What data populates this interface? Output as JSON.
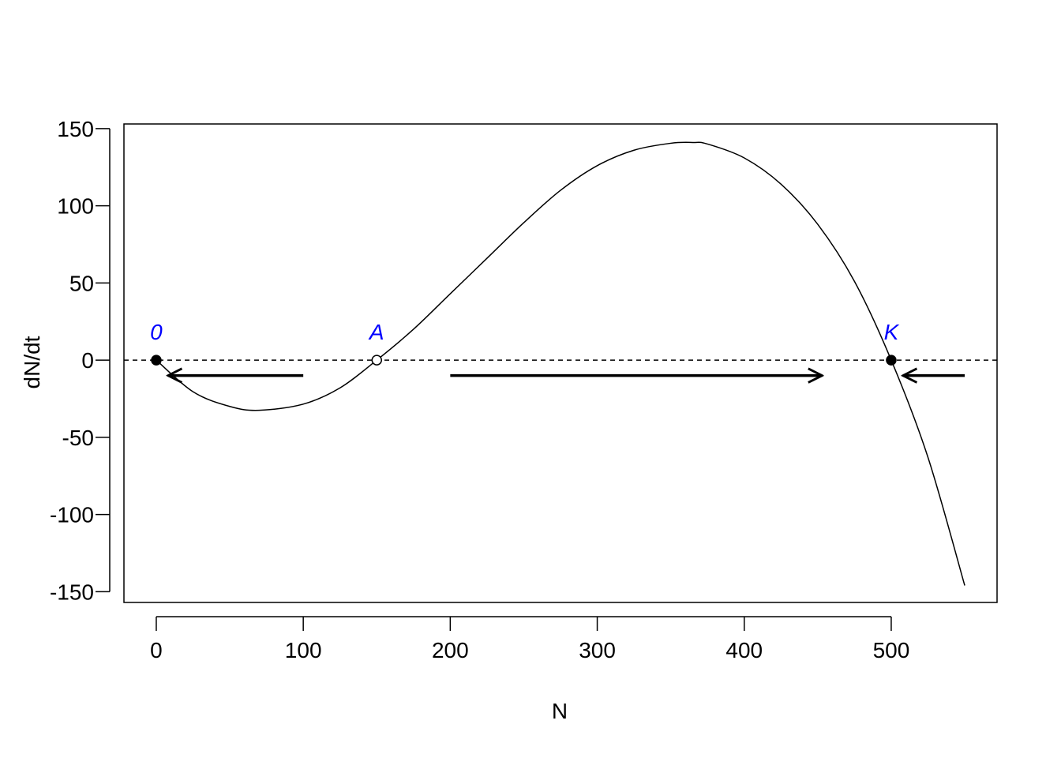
{
  "chart_data": {
    "type": "line",
    "title": "",
    "xlabel": "N",
    "ylabel": "dN/dt",
    "xlim": [
      -22,
      572
    ],
    "ylim": [
      -157,
      153
    ],
    "x_ticks": [
      0,
      100,
      200,
      300,
      400,
      500
    ],
    "y_ticks": [
      -150,
      -100,
      -50,
      0,
      50,
      100,
      150
    ],
    "x_tick_labels": [
      "0",
      "100",
      "200",
      "300",
      "400",
      "500"
    ],
    "y_tick_labels": [
      "-150",
      "-100",
      "-50",
      "0",
      "50",
      "100",
      "150"
    ],
    "grid": false,
    "series": [
      {
        "style": "solid",
        "color": "#000000",
        "x": [
          0,
          25,
          50,
          70,
          100,
          125,
          150,
          175,
          200,
          225,
          250,
          275,
          300,
          325,
          350,
          365,
          375,
          400,
          425,
          450,
          475,
          500,
          525,
          550
        ],
        "y": [
          0,
          -20.5,
          -30,
          -32.5,
          -28.5,
          -18,
          0,
          20,
          43,
          66,
          89,
          110,
          126,
          136,
          140.5,
          141,
          140,
          131,
          114,
          88,
          51,
          0,
          -63,
          -146
        ]
      },
      {
        "style": "dashed",
        "color": "#000000",
        "x": [
          -22,
          572
        ],
        "y": [
          0,
          0
        ]
      }
    ],
    "equilibria": [
      {
        "label": "0",
        "x": 0,
        "y": 0,
        "marker": "filled"
      },
      {
        "label": "A",
        "x": 150,
        "y": 0,
        "marker": "open"
      },
      {
        "label": "K",
        "x": 500,
        "y": 0,
        "marker": "filled"
      }
    ],
    "arrows": [
      {
        "from": 100,
        "to": 8,
        "y": -10
      },
      {
        "from": 200,
        "to": 453,
        "y": -10
      },
      {
        "from": 550,
        "to": 508,
        "y": -10
      }
    ],
    "colors": {
      "line": "#000000",
      "equilibrium_label": "#0000ff"
    }
  }
}
